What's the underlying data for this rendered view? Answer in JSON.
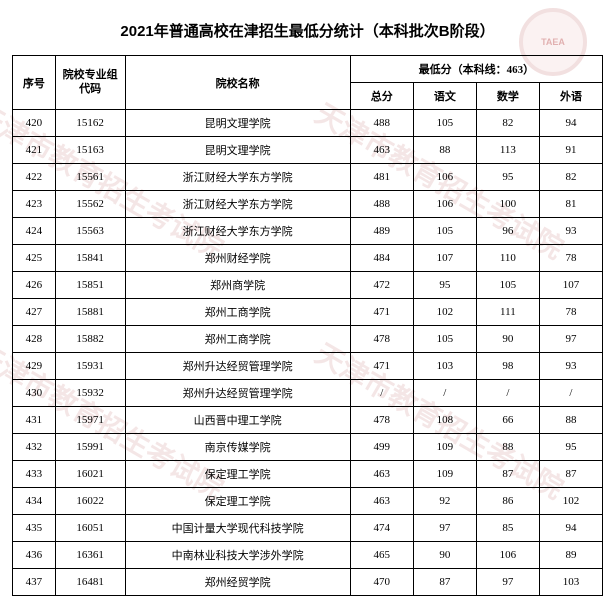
{
  "title": "2021年普通高校在津招生最低分统计（本科批次B阶段）",
  "header": {
    "seq": "序号",
    "code": "院校专业组\n代码",
    "name": "院校名称",
    "score_group": "最低分（本科线：463）",
    "total": "总分",
    "chinese": "语文",
    "math": "数学",
    "foreign": "外语"
  },
  "style": {
    "border_color": "#000000",
    "font_family": "SimSun",
    "title_fontsize": 15,
    "cell_fontsize": 11
  },
  "rows": [
    {
      "seq": "420",
      "code": "15162",
      "name": "昆明文理学院",
      "total": "488",
      "chinese": "105",
      "math": "82",
      "foreign": "94"
    },
    {
      "seq": "421",
      "code": "15163",
      "name": "昆明文理学院",
      "total": "463",
      "chinese": "88",
      "math": "113",
      "foreign": "91"
    },
    {
      "seq": "422",
      "code": "15561",
      "name": "浙江财经大学东方学院",
      "total": "481",
      "chinese": "106",
      "math": "95",
      "foreign": "82"
    },
    {
      "seq": "423",
      "code": "15562",
      "name": "浙江财经大学东方学院",
      "total": "488",
      "chinese": "106",
      "math": "100",
      "foreign": "81"
    },
    {
      "seq": "424",
      "code": "15563",
      "name": "浙江财经大学东方学院",
      "total": "489",
      "chinese": "105",
      "math": "96",
      "foreign": "93"
    },
    {
      "seq": "425",
      "code": "15841",
      "name": "郑州财经学院",
      "total": "484",
      "chinese": "107",
      "math": "110",
      "foreign": "78"
    },
    {
      "seq": "426",
      "code": "15851",
      "name": "郑州商学院",
      "total": "472",
      "chinese": "95",
      "math": "105",
      "foreign": "107"
    },
    {
      "seq": "427",
      "code": "15881",
      "name": "郑州工商学院",
      "total": "471",
      "chinese": "102",
      "math": "111",
      "foreign": "78"
    },
    {
      "seq": "428",
      "code": "15882",
      "name": "郑州工商学院",
      "total": "478",
      "chinese": "105",
      "math": "90",
      "foreign": "97"
    },
    {
      "seq": "429",
      "code": "15931",
      "name": "郑州升达经贸管理学院",
      "total": "471",
      "chinese": "103",
      "math": "98",
      "foreign": "93"
    },
    {
      "seq": "430",
      "code": "15932",
      "name": "郑州升达经贸管理学院",
      "total": "/",
      "chinese": "/",
      "math": "/",
      "foreign": "/"
    },
    {
      "seq": "431",
      "code": "15971",
      "name": "山西晋中理工学院",
      "total": "478",
      "chinese": "108",
      "math": "66",
      "foreign": "88"
    },
    {
      "seq": "432",
      "code": "15991",
      "name": "南京传媒学院",
      "total": "499",
      "chinese": "109",
      "math": "88",
      "foreign": "95"
    },
    {
      "seq": "433",
      "code": "16021",
      "name": "保定理工学院",
      "total": "463",
      "chinese": "109",
      "math": "87",
      "foreign": "87"
    },
    {
      "seq": "434",
      "code": "16022",
      "name": "保定理工学院",
      "total": "463",
      "chinese": "92",
      "math": "86",
      "foreign": "102"
    },
    {
      "seq": "435",
      "code": "16051",
      "name": "中国计量大学现代科技学院",
      "total": "474",
      "chinese": "97",
      "math": "85",
      "foreign": "94"
    },
    {
      "seq": "436",
      "code": "16361",
      "name": "中南林业科技大学涉外学院",
      "total": "465",
      "chinese": "90",
      "math": "106",
      "foreign": "89"
    },
    {
      "seq": "437",
      "code": "16481",
      "name": "郑州经贸学院",
      "total": "470",
      "chinese": "87",
      "math": "97",
      "foreign": "103"
    }
  ],
  "watermark_logo_text": "TAEA",
  "watermark_diag_text": "天津市教育招生考试院"
}
